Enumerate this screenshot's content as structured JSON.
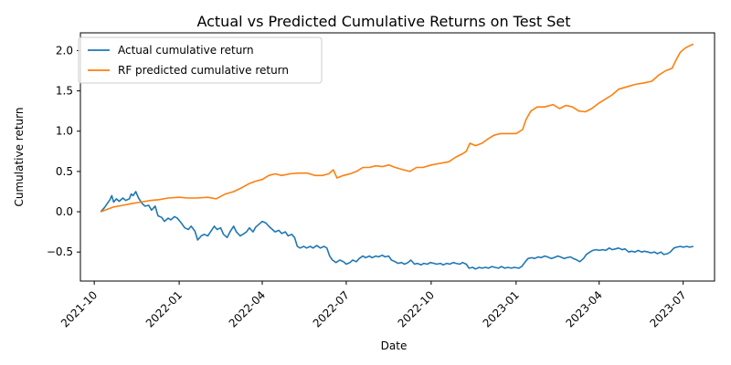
{
  "chart_data": {
    "type": "line",
    "title": "Actual vs Predicted Cumulative Returns on Test Set",
    "xlabel": "Date",
    "ylabel": "Cumulative return",
    "x_ticks": [
      "2021-10",
      "2022-01",
      "2022-04",
      "2022-07",
      "2022-10",
      "2023-01",
      "2023-04",
      "2023-07"
    ],
    "y_ticks": [
      "−0.5",
      "0.0",
      "0.5",
      "1.0",
      "1.5",
      "2.0"
    ],
    "y_tick_values": [
      -0.5,
      0.0,
      0.5,
      1.0,
      1.5,
      2.0
    ],
    "xlim": [
      "2021-09-16",
      "2023-08-04"
    ],
    "ylim": [
      -0.86,
      2.22
    ],
    "grid": false,
    "legend_position": "top-left",
    "series": [
      {
        "name": "Actual cumulative return",
        "color": "#1f77b4",
        "points": [
          [
            "2021-10-08",
            0.0
          ],
          [
            "2021-10-12",
            0.05
          ],
          [
            "2021-10-15",
            0.1
          ],
          [
            "2021-10-18",
            0.15
          ],
          [
            "2021-10-20",
            0.2
          ],
          [
            "2021-10-22",
            0.12
          ],
          [
            "2021-10-25",
            0.16
          ],
          [
            "2021-10-28",
            0.13
          ],
          [
            "2021-11-01",
            0.17
          ],
          [
            "2021-11-04",
            0.14
          ],
          [
            "2021-11-08",
            0.16
          ],
          [
            "2021-11-10",
            0.22
          ],
          [
            "2021-11-12",
            0.2
          ],
          [
            "2021-11-15",
            0.25
          ],
          [
            "2021-11-18",
            0.17
          ],
          [
            "2021-11-22",
            0.1
          ],
          [
            "2021-11-25",
            0.07
          ],
          [
            "2021-11-29",
            0.08
          ],
          [
            "2021-12-02",
            0.02
          ],
          [
            "2021-12-06",
            0.07
          ],
          [
            "2021-12-09",
            -0.05
          ],
          [
            "2021-12-13",
            -0.07
          ],
          [
            "2021-12-16",
            -0.12
          ],
          [
            "2021-12-20",
            -0.08
          ],
          [
            "2021-12-23",
            -0.1
          ],
          [
            "2021-12-27",
            -0.06
          ],
          [
            "2021-12-30",
            -0.08
          ],
          [
            "2022-01-04",
            -0.15
          ],
          [
            "2022-01-07",
            -0.2
          ],
          [
            "2022-01-11",
            -0.22
          ],
          [
            "2022-01-14",
            -0.18
          ],
          [
            "2022-01-18",
            -0.24
          ],
          [
            "2022-01-21",
            -0.35
          ],
          [
            "2022-01-25",
            -0.3
          ],
          [
            "2022-01-28",
            -0.28
          ],
          [
            "2022-02-01",
            -0.3
          ],
          [
            "2022-02-04",
            -0.25
          ],
          [
            "2022-02-08",
            -0.18
          ],
          [
            "2022-02-11",
            -0.22
          ],
          [
            "2022-02-15",
            -0.2
          ],
          [
            "2022-02-18",
            -0.28
          ],
          [
            "2022-02-22",
            -0.32
          ],
          [
            "2022-02-25",
            -0.25
          ],
          [
            "2022-03-01",
            -0.18
          ],
          [
            "2022-03-04",
            -0.25
          ],
          [
            "2022-03-08",
            -0.3
          ],
          [
            "2022-03-11",
            -0.28
          ],
          [
            "2022-03-15",
            -0.25
          ],
          [
            "2022-03-18",
            -0.2
          ],
          [
            "2022-03-22",
            -0.25
          ],
          [
            "2022-03-25",
            -0.19
          ],
          [
            "2022-03-29",
            -0.15
          ],
          [
            "2022-04-01",
            -0.12
          ],
          [
            "2022-04-05",
            -0.14
          ],
          [
            "2022-04-08",
            -0.18
          ],
          [
            "2022-04-12",
            -0.22
          ],
          [
            "2022-04-15",
            -0.25
          ],
          [
            "2022-04-19",
            -0.23
          ],
          [
            "2022-04-22",
            -0.27
          ],
          [
            "2022-04-26",
            -0.25
          ],
          [
            "2022-04-29",
            -0.3
          ],
          [
            "2022-05-03",
            -0.28
          ],
          [
            "2022-05-06",
            -0.32
          ],
          [
            "2022-05-09",
            -0.43
          ],
          [
            "2022-05-12",
            -0.45
          ],
          [
            "2022-05-16",
            -0.43
          ],
          [
            "2022-05-19",
            -0.45
          ],
          [
            "2022-05-23",
            -0.43
          ],
          [
            "2022-05-26",
            -0.45
          ],
          [
            "2022-05-30",
            -0.42
          ],
          [
            "2022-06-03",
            -0.45
          ],
          [
            "2022-06-07",
            -0.43
          ],
          [
            "2022-06-10",
            -0.45
          ],
          [
            "2022-06-13",
            -0.55
          ],
          [
            "2022-06-16",
            -0.6
          ],
          [
            "2022-06-20",
            -0.63
          ],
          [
            "2022-06-24",
            -0.6
          ],
          [
            "2022-06-28",
            -0.62
          ],
          [
            "2022-07-01",
            -0.65
          ],
          [
            "2022-07-05",
            -0.63
          ],
          [
            "2022-07-08",
            -0.6
          ],
          [
            "2022-07-12",
            -0.62
          ],
          [
            "2022-07-15",
            -0.58
          ],
          [
            "2022-07-19",
            -0.55
          ],
          [
            "2022-07-22",
            -0.57
          ],
          [
            "2022-07-26",
            -0.55
          ],
          [
            "2022-07-29",
            -0.57
          ],
          [
            "2022-08-02",
            -0.55
          ],
          [
            "2022-08-05",
            -0.56
          ],
          [
            "2022-08-09",
            -0.54
          ],
          [
            "2022-08-12",
            -0.56
          ],
          [
            "2022-08-16",
            -0.55
          ],
          [
            "2022-08-19",
            -0.6
          ],
          [
            "2022-08-23",
            -0.62
          ],
          [
            "2022-08-26",
            -0.64
          ],
          [
            "2022-08-30",
            -0.63
          ],
          [
            "2022-09-02",
            -0.65
          ],
          [
            "2022-09-06",
            -0.63
          ],
          [
            "2022-09-09",
            -0.6
          ],
          [
            "2022-09-13",
            -0.65
          ],
          [
            "2022-09-16",
            -0.64
          ],
          [
            "2022-09-20",
            -0.66
          ],
          [
            "2022-09-23",
            -0.64
          ],
          [
            "2022-09-27",
            -0.65
          ],
          [
            "2022-09-30",
            -0.63
          ],
          [
            "2022-10-04",
            -0.64
          ],
          [
            "2022-10-07",
            -0.65
          ],
          [
            "2022-10-11",
            -0.64
          ],
          [
            "2022-10-14",
            -0.66
          ],
          [
            "2022-10-18",
            -0.64
          ],
          [
            "2022-10-21",
            -0.65
          ],
          [
            "2022-10-25",
            -0.63
          ],
          [
            "2022-10-28",
            -0.64
          ],
          [
            "2022-11-01",
            -0.65
          ],
          [
            "2022-11-04",
            -0.63
          ],
          [
            "2022-11-08",
            -0.65
          ],
          [
            "2022-11-11",
            -0.7
          ],
          [
            "2022-11-15",
            -0.69
          ],
          [
            "2022-11-18",
            -0.71
          ],
          [
            "2022-11-22",
            -0.69
          ],
          [
            "2022-11-25",
            -0.7
          ],
          [
            "2022-11-29",
            -0.69
          ],
          [
            "2022-12-02",
            -0.7
          ],
          [
            "2022-12-06",
            -0.68
          ],
          [
            "2022-12-09",
            -0.69
          ],
          [
            "2022-12-13",
            -0.7
          ],
          [
            "2022-12-16",
            -0.68
          ],
          [
            "2022-12-20",
            -0.7
          ],
          [
            "2022-12-23",
            -0.69
          ],
          [
            "2022-12-27",
            -0.7
          ],
          [
            "2022-12-30",
            -0.69
          ],
          [
            "2023-01-04",
            -0.7
          ],
          [
            "2023-01-07",
            -0.68
          ],
          [
            "2023-01-11",
            -0.62
          ],
          [
            "2023-01-14",
            -0.58
          ],
          [
            "2023-01-18",
            -0.57
          ],
          [
            "2023-01-21",
            -0.58
          ],
          [
            "2023-01-25",
            -0.56
          ],
          [
            "2023-01-28",
            -0.57
          ],
          [
            "2023-02-01",
            -0.55
          ],
          [
            "2023-02-04",
            -0.56
          ],
          [
            "2023-02-08",
            -0.58
          ],
          [
            "2023-02-11",
            -0.57
          ],
          [
            "2023-02-15",
            -0.55
          ],
          [
            "2023-02-18",
            -0.56
          ],
          [
            "2023-02-22",
            -0.58
          ],
          [
            "2023-02-25",
            -0.57
          ],
          [
            "2023-03-01",
            -0.56
          ],
          [
            "2023-03-04",
            -0.58
          ],
          [
            "2023-03-08",
            -0.6
          ],
          [
            "2023-03-11",
            -0.62
          ],
          [
            "2023-03-15",
            -0.58
          ],
          [
            "2023-03-18",
            -0.53
          ],
          [
            "2023-03-22",
            -0.5
          ],
          [
            "2023-03-25",
            -0.48
          ],
          [
            "2023-03-29",
            -0.47
          ],
          [
            "2023-04-01",
            -0.48
          ],
          [
            "2023-04-05",
            -0.47
          ],
          [
            "2023-04-08",
            -0.48
          ],
          [
            "2023-04-12",
            -0.45
          ],
          [
            "2023-04-15",
            -0.47
          ],
          [
            "2023-04-19",
            -0.46
          ],
          [
            "2023-04-22",
            -0.45
          ],
          [
            "2023-04-26",
            -0.47
          ],
          [
            "2023-04-29",
            -0.46
          ],
          [
            "2023-05-03",
            -0.5
          ],
          [
            "2023-05-06",
            -0.49
          ],
          [
            "2023-05-10",
            -0.5
          ],
          [
            "2023-05-13",
            -0.48
          ],
          [
            "2023-05-17",
            -0.5
          ],
          [
            "2023-05-20",
            -0.49
          ],
          [
            "2023-05-24",
            -0.5
          ],
          [
            "2023-05-27",
            -0.51
          ],
          [
            "2023-05-31",
            -0.5
          ],
          [
            "2023-06-03",
            -0.52
          ],
          [
            "2023-06-07",
            -0.5
          ],
          [
            "2023-06-10",
            -0.53
          ],
          [
            "2023-06-14",
            -0.52
          ],
          [
            "2023-06-17",
            -0.5
          ],
          [
            "2023-06-21",
            -0.45
          ],
          [
            "2023-06-24",
            -0.44
          ],
          [
            "2023-06-28",
            -0.43
          ],
          [
            "2023-07-01",
            -0.44
          ],
          [
            "2023-07-05",
            -0.43
          ],
          [
            "2023-07-08",
            -0.44
          ],
          [
            "2023-07-12",
            -0.43
          ]
        ]
      },
      {
        "name": "RF predicted cumulative return",
        "color": "#ff7f0e",
        "points": [
          [
            "2021-10-08",
            0.0
          ],
          [
            "2021-10-15",
            0.03
          ],
          [
            "2021-10-22",
            0.06
          ],
          [
            "2021-11-01",
            0.08
          ],
          [
            "2021-11-10",
            0.1
          ],
          [
            "2021-11-20",
            0.12
          ],
          [
            "2021-12-01",
            0.14
          ],
          [
            "2021-12-10",
            0.15
          ],
          [
            "2021-12-20",
            0.17
          ],
          [
            "2022-01-01",
            0.18
          ],
          [
            "2022-01-10",
            0.17
          ],
          [
            "2022-01-20",
            0.17
          ],
          [
            "2022-02-01",
            0.18
          ],
          [
            "2022-02-10",
            0.16
          ],
          [
            "2022-02-20",
            0.22
          ],
          [
            "2022-03-01",
            0.25
          ],
          [
            "2022-03-10",
            0.3
          ],
          [
            "2022-03-18",
            0.35
          ],
          [
            "2022-03-25",
            0.38
          ],
          [
            "2022-04-01",
            0.4
          ],
          [
            "2022-04-08",
            0.45
          ],
          [
            "2022-04-15",
            0.47
          ],
          [
            "2022-04-22",
            0.45
          ],
          [
            "2022-05-01",
            0.47
          ],
          [
            "2022-05-10",
            0.48
          ],
          [
            "2022-05-20",
            0.48
          ],
          [
            "2022-05-28",
            0.45
          ],
          [
            "2022-06-05",
            0.45
          ],
          [
            "2022-06-12",
            0.47
          ],
          [
            "2022-06-17",
            0.52
          ],
          [
            "2022-06-21",
            0.42
          ],
          [
            "2022-06-28",
            0.45
          ],
          [
            "2022-07-05",
            0.47
          ],
          [
            "2022-07-12",
            0.5
          ],
          [
            "2022-07-19",
            0.55
          ],
          [
            "2022-07-26",
            0.55
          ],
          [
            "2022-08-02",
            0.57
          ],
          [
            "2022-08-09",
            0.56
          ],
          [
            "2022-08-16",
            0.58
          ],
          [
            "2022-08-23",
            0.55
          ],
          [
            "2022-09-01",
            0.52
          ],
          [
            "2022-09-08",
            0.5
          ],
          [
            "2022-09-15",
            0.55
          ],
          [
            "2022-09-22",
            0.55
          ],
          [
            "2022-10-01",
            0.58
          ],
          [
            "2022-10-10",
            0.6
          ],
          [
            "2022-10-20",
            0.62
          ],
          [
            "2022-10-28",
            0.68
          ],
          [
            "2022-11-04",
            0.72
          ],
          [
            "2022-11-08",
            0.75
          ],
          [
            "2022-11-12",
            0.85
          ],
          [
            "2022-11-18",
            0.82
          ],
          [
            "2022-11-25",
            0.85
          ],
          [
            "2022-12-01",
            0.9
          ],
          [
            "2022-12-08",
            0.95
          ],
          [
            "2022-12-15",
            0.97
          ],
          [
            "2022-12-22",
            0.97
          ],
          [
            "2023-01-01",
            0.97
          ],
          [
            "2023-01-08",
            1.02
          ],
          [
            "2023-01-12",
            1.15
          ],
          [
            "2023-01-17",
            1.25
          ],
          [
            "2023-01-24",
            1.3
          ],
          [
            "2023-02-01",
            1.3
          ],
          [
            "2023-02-10",
            1.33
          ],
          [
            "2023-02-17",
            1.28
          ],
          [
            "2023-02-24",
            1.32
          ],
          [
            "2023-03-03",
            1.3
          ],
          [
            "2023-03-10",
            1.25
          ],
          [
            "2023-03-17",
            1.24
          ],
          [
            "2023-03-24",
            1.28
          ],
          [
            "2023-04-01",
            1.35
          ],
          [
            "2023-04-08",
            1.4
          ],
          [
            "2023-04-15",
            1.45
          ],
          [
            "2023-04-22",
            1.52
          ],
          [
            "2023-05-01",
            1.55
          ],
          [
            "2023-05-10",
            1.58
          ],
          [
            "2023-05-20",
            1.6
          ],
          [
            "2023-05-28",
            1.62
          ],
          [
            "2023-06-05",
            1.7
          ],
          [
            "2023-06-12",
            1.75
          ],
          [
            "2023-06-19",
            1.78
          ],
          [
            "2023-06-24",
            1.9
          ],
          [
            "2023-06-28",
            1.98
          ],
          [
            "2023-07-03",
            2.03
          ],
          [
            "2023-07-08",
            2.06
          ],
          [
            "2023-07-12",
            2.08
          ]
        ]
      }
    ]
  }
}
